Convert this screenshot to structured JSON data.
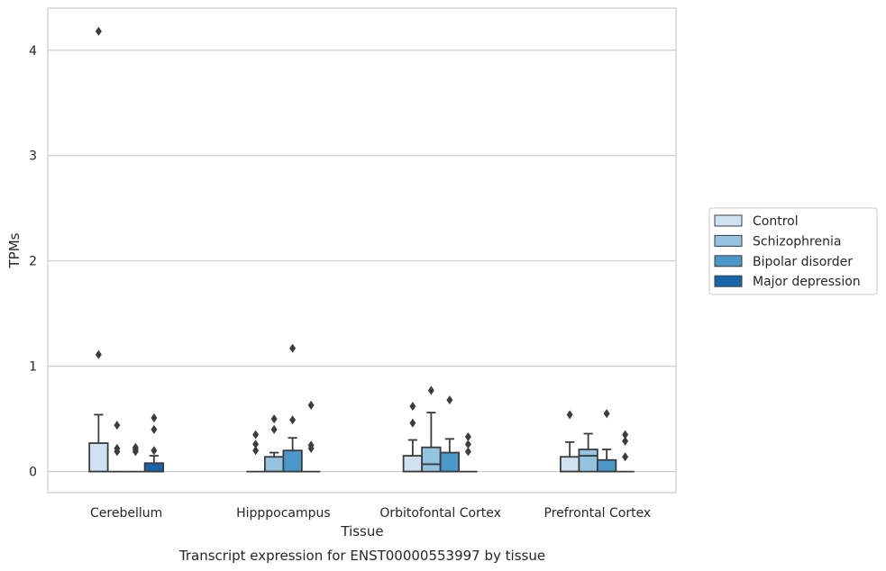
{
  "chart_data": {
    "type": "box",
    "title": "",
    "caption": "Transcript expression for ENST00000553997 by tissue",
    "xlabel": "Tissue",
    "ylabel": "TPMs",
    "ylim": [
      -0.2,
      4.4
    ],
    "yticks": [
      0,
      1,
      2,
      3,
      4
    ],
    "grid": "horizontal",
    "legend_position": "right",
    "categories": [
      "Cerebellum",
      "Hipppocampus",
      "Orbitofontal Cortex",
      "Prefrontal Cortex"
    ],
    "series": [
      {
        "name": "Control",
        "color": "#d0e1f2",
        "boxes": [
          {
            "q1": 0,
            "median": 0,
            "q3": 0.27,
            "whisker_low": 0,
            "whisker_high": 0.54,
            "outliers": [
              1.11,
              4.18
            ]
          },
          {
            "q1": 0,
            "median": 0,
            "q3": 0,
            "whisker_low": 0,
            "whisker_high": 0,
            "outliers": [
              0.2,
              0.26,
              0.35
            ]
          },
          {
            "q1": 0,
            "median": 0,
            "q3": 0.15,
            "whisker_low": 0,
            "whisker_high": 0.3,
            "outliers": [
              0.46,
              0.62
            ]
          },
          {
            "q1": 0,
            "median": 0,
            "q3": 0.14,
            "whisker_low": 0,
            "whisker_high": 0.28,
            "outliers": [
              0.54
            ]
          }
        ]
      },
      {
        "name": "Schizophrenia",
        "color": "#94c4df",
        "boxes": [
          {
            "q1": 0,
            "median": 0,
            "q3": 0,
            "whisker_low": 0,
            "whisker_high": 0,
            "outliers": [
              0.19,
              0.22,
              0.44
            ]
          },
          {
            "q1": 0,
            "median": 0,
            "q3": 0.14,
            "whisker_low": 0,
            "whisker_high": 0.18,
            "outliers": [
              0.4,
              0.5
            ]
          },
          {
            "q1": 0,
            "median": 0.07,
            "q3": 0.23,
            "whisker_low": 0,
            "whisker_high": 0.56,
            "outliers": [
              0.77
            ]
          },
          {
            "q1": 0,
            "median": 0.15,
            "q3": 0.21,
            "whisker_low": 0,
            "whisker_high": 0.36,
            "outliers": []
          }
        ]
      },
      {
        "name": "Bipolar disorder",
        "color": "#4a98c9",
        "boxes": [
          {
            "q1": 0,
            "median": 0,
            "q3": 0,
            "whisker_low": 0,
            "whisker_high": 0,
            "outliers": [
              0.19,
              0.21,
              0.23
            ]
          },
          {
            "q1": 0,
            "median": 0,
            "q3": 0.2,
            "whisker_low": 0,
            "whisker_high": 0.32,
            "outliers": [
              0.49,
              1.17
            ]
          },
          {
            "q1": 0,
            "median": 0,
            "q3": 0.18,
            "whisker_low": 0,
            "whisker_high": 0.31,
            "outliers": [
              0.68
            ]
          },
          {
            "q1": 0,
            "median": 0,
            "q3": 0.11,
            "whisker_low": 0,
            "whisker_high": 0.21,
            "outliers": [
              0.55
            ]
          }
        ]
      },
      {
        "name": "Major depression",
        "color": "#1764ab",
        "boxes": [
          {
            "q1": 0,
            "median": 0,
            "q3": 0.08,
            "whisker_low": 0,
            "whisker_high": 0.15,
            "outliers": [
              0.2,
              0.4,
              0.51
            ]
          },
          {
            "q1": 0,
            "median": 0,
            "q3": 0,
            "whisker_low": 0,
            "whisker_high": 0,
            "outliers": [
              0.22,
              0.25,
              0.63
            ]
          },
          {
            "q1": 0,
            "median": 0,
            "q3": 0,
            "whisker_low": 0,
            "whisker_high": 0,
            "outliers": [
              0.19,
              0.26,
              0.33
            ]
          },
          {
            "q1": 0,
            "median": 0,
            "q3": 0,
            "whisker_low": 0,
            "whisker_high": 0,
            "outliers": [
              0.14,
              0.29,
              0.35
            ]
          }
        ]
      }
    ]
  }
}
